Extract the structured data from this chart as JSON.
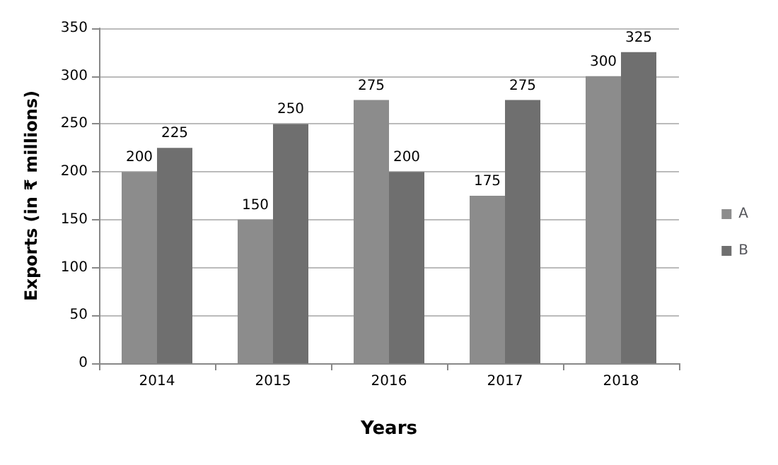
{
  "chart_data": {
    "type": "bar",
    "xlabel": "Years",
    "ylabel": "Exports (in ₹ millions)",
    "categories": [
      "2014",
      "2015",
      "2016",
      "2017",
      "2018"
    ],
    "series": [
      {
        "name": "A",
        "color": "#8c8c8c",
        "values": [
          200,
          150,
          275,
          175,
          300
        ]
      },
      {
        "name": "B",
        "color": "#6f6f6f",
        "values": [
          225,
          250,
          200,
          275,
          325
        ]
      }
    ],
    "ylim": [
      0,
      350
    ],
    "yticks": [
      0,
      50,
      100,
      150,
      200,
      250,
      300,
      350
    ],
    "grid": "y",
    "legend": "right",
    "data_labels": true
  }
}
